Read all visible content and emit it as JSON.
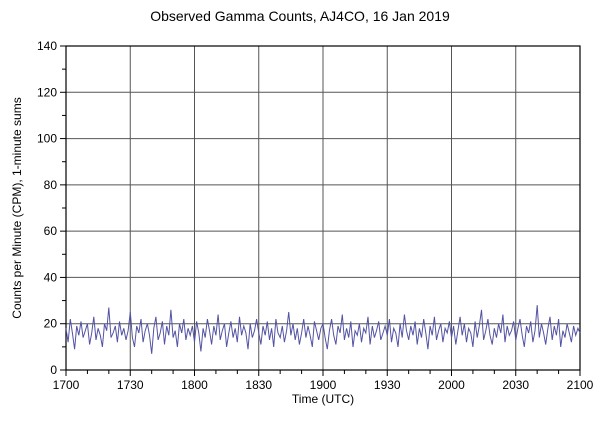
{
  "chart_data": {
    "type": "line",
    "title": "Observed Gamma Counts, AJ4CO, 16 Jan 2019",
    "xlabel": "Time (UTC)",
    "ylabel": "Counts per Minute (CPM), 1-minute sums",
    "xlim": [
      0,
      240
    ],
    "ylim": [
      0,
      140
    ],
    "x_tick_minutes": [
      0,
      30,
      60,
      90,
      120,
      150,
      180,
      210,
      240
    ],
    "x_tick_labels": [
      "1700",
      "1730",
      "1800",
      "1830",
      "1900",
      "1930",
      "2000",
      "2030",
      "2100"
    ],
    "y_ticks": [
      0,
      20,
      40,
      60,
      80,
      100,
      120,
      140
    ],
    "x_minor_step": 10,
    "y_minor_step": 10,
    "grid": true,
    "legend": "none",
    "sample_interval_min": 1,
    "line_color": "#5353a4",
    "grid_color": "#555555",
    "frame_color": "#000000",
    "values": [
      18,
      12,
      22,
      16,
      9,
      19,
      15,
      21,
      14,
      17,
      20,
      11,
      16,
      23,
      13,
      18,
      15,
      10,
      20,
      17,
      27,
      14,
      16,
      19,
      12,
      21,
      15,
      18,
      13,
      17,
      25,
      14,
      10,
      19,
      16,
      22,
      12,
      17,
      20,
      15,
      7,
      18,
      23,
      13,
      16,
      21,
      11,
      19,
      15,
      26,
      14,
      17,
      10,
      20,
      16,
      22,
      13,
      18,
      15,
      19,
      12,
      21,
      16,
      8,
      18,
      14,
      22,
      17,
      11,
      19,
      15,
      24,
      13,
      17,
      20,
      10,
      16,
      21,
      14,
      18,
      12,
      23,
      15,
      19,
      16,
      9,
      20,
      14,
      17,
      22,
      16,
      11,
      19,
      15,
      21,
      13,
      18,
      10,
      22,
      16,
      14,
      19,
      12,
      17,
      25,
      15,
      20,
      13,
      18,
      11,
      16,
      22,
      14,
      19,
      15,
      10,
      21,
      17,
      13,
      18,
      20,
      14,
      9,
      17,
      22,
      15,
      11,
      19,
      16,
      24,
      13,
      18,
      14,
      21,
      10,
      17,
      15,
      20,
      12,
      18,
      16,
      23,
      11,
      19,
      14,
      17,
      21,
      13,
      16,
      19,
      15,
      22,
      12,
      18,
      16,
      10,
      20,
      14,
      24,
      17,
      13,
      19,
      15,
      21,
      11,
      18,
      14,
      22,
      16,
      9,
      19,
      15,
      23,
      13,
      17,
      20,
      12,
      18,
      16,
      21,
      14,
      19,
      11,
      17,
      23,
      15,
      20,
      12,
      18,
      16,
      10,
      21,
      14,
      19,
      26,
      13,
      17,
      22,
      15,
      11,
      18,
      14,
      20,
      16,
      24,
      12,
      19,
      15,
      17,
      21,
      13,
      18,
      22,
      15,
      10,
      19,
      16,
      21,
      12,
      17,
      28,
      14,
      20,
      16,
      11,
      18,
      23,
      13,
      19,
      15,
      22,
      10,
      17,
      14,
      20,
      16,
      12,
      19,
      15,
      18,
      16
    ]
  }
}
